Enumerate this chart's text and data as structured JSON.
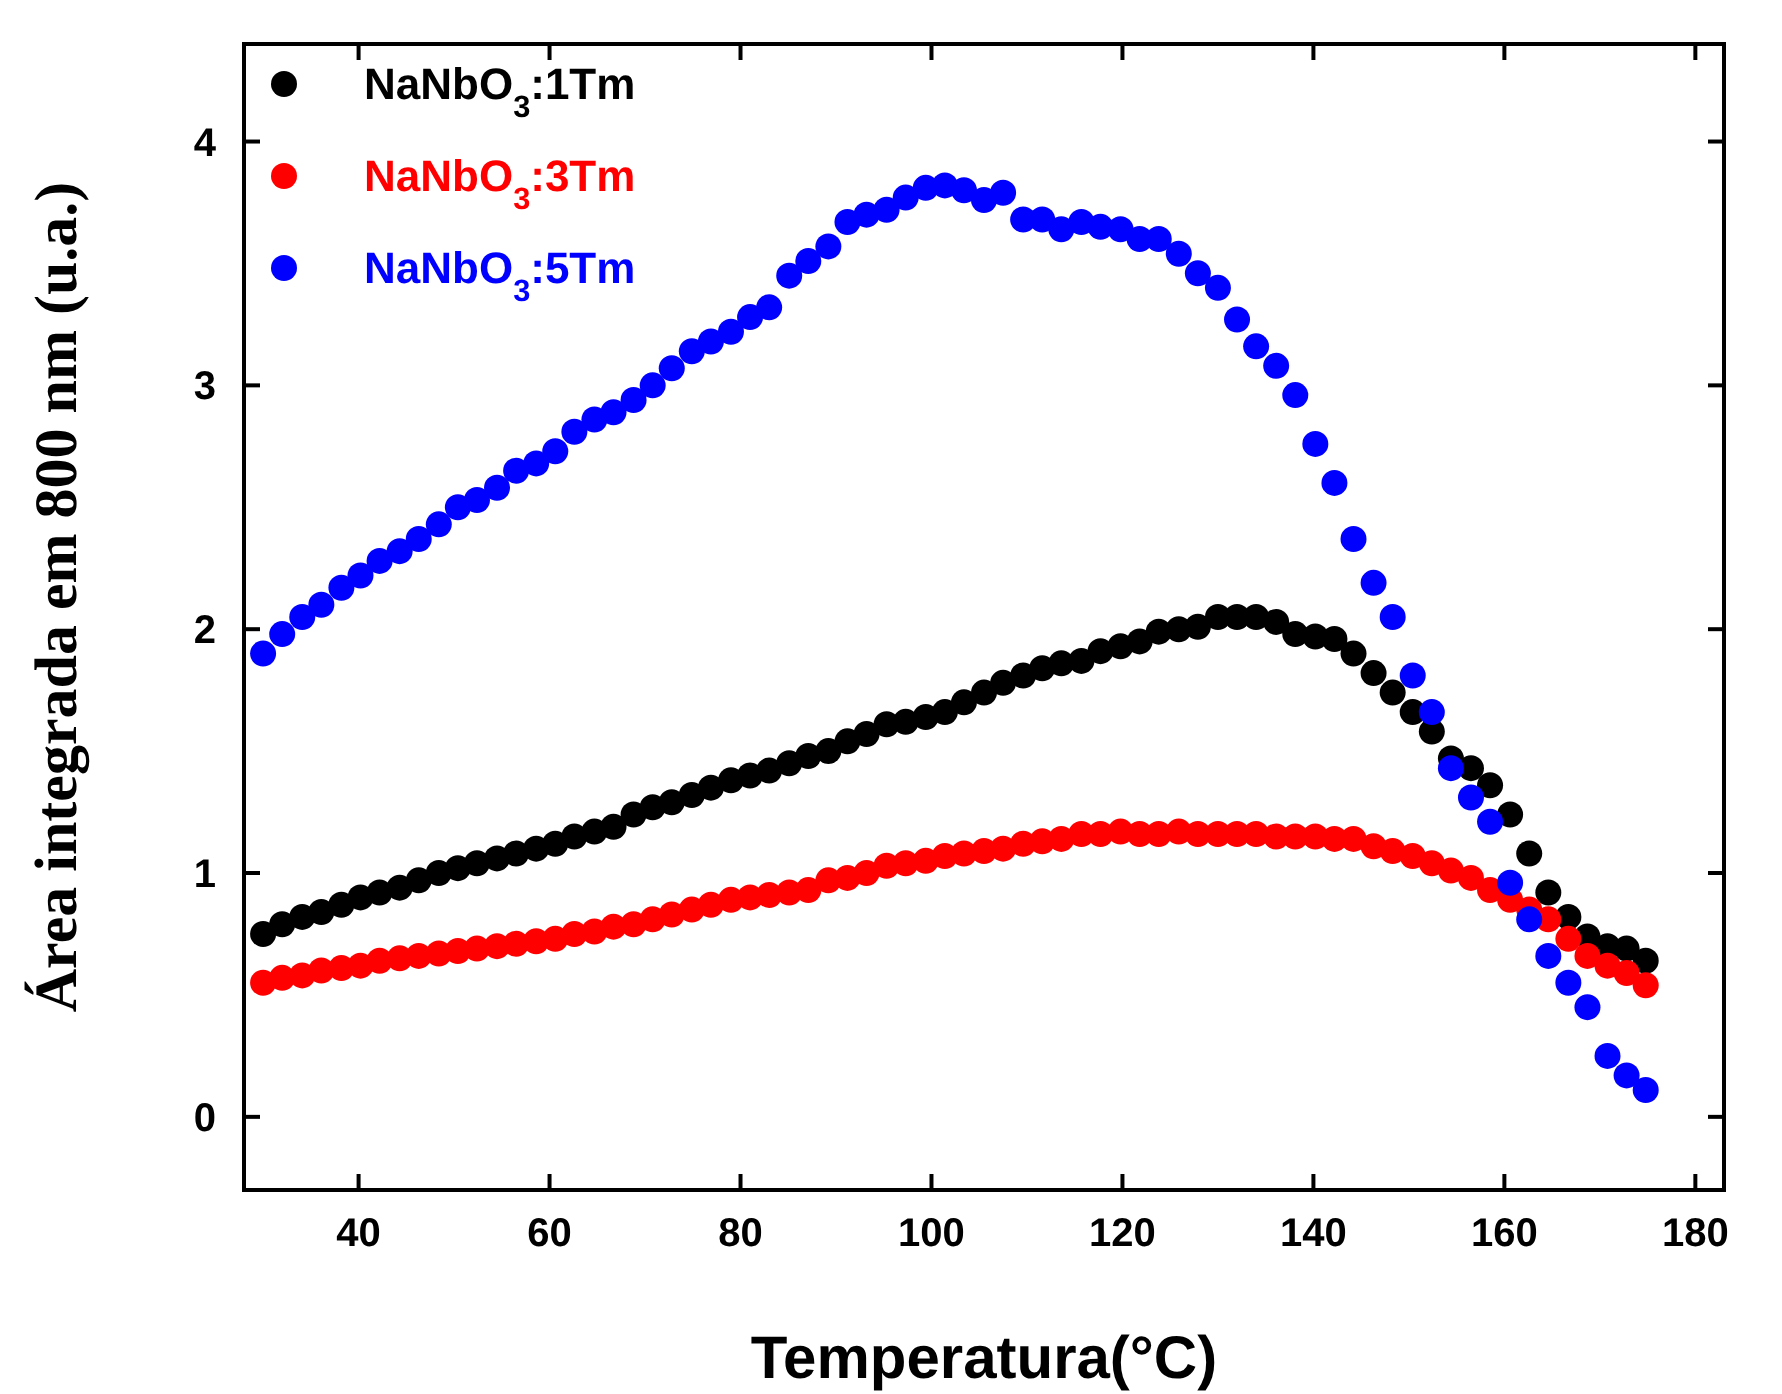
{
  "chart_data": {
    "type": "scatter",
    "xlabel": "Temperatura(°C)",
    "ylabel": "Área integrada em 800 nm (u.a.)",
    "x": [
      30,
      32.0,
      34.1,
      36.1,
      38.2,
      40.2,
      42.2,
      44.3,
      46.3,
      48.4,
      50.4,
      52.4,
      54.5,
      56.5,
      58.6,
      60.6,
      62.6,
      64.7,
      66.7,
      68.8,
      70.8,
      72.8,
      74.9,
      76.9,
      79.0,
      81.0,
      83.0,
      85.1,
      87.1,
      89.2,
      91.2,
      93.2,
      95.3,
      97.3,
      99.4,
      101.4,
      103.4,
      105.5,
      107.5,
      109.6,
      111.6,
      113.6,
      115.7,
      117.7,
      119.8,
      121.8,
      123.8,
      125.9,
      127.9,
      130.0,
      132.0,
      134.0,
      136.1,
      138.1,
      140.2,
      142.2,
      144.2,
      146.3,
      148.3,
      150.4,
      152.4,
      154.4,
      156.5,
      158.5,
      160.6,
      162.6,
      164.6,
      166.7,
      168.7,
      170.8,
      172.8,
      174.8
    ],
    "series": [
      {
        "name": "NaNbO$_{3}$:1Tm",
        "color": "#000000",
        "values": [
          0.75,
          0.79,
          0.82,
          0.84,
          0.87,
          0.9,
          0.92,
          0.94,
          0.97,
          1.0,
          1.02,
          1.04,
          1.06,
          1.08,
          1.1,
          1.12,
          1.15,
          1.17,
          1.19,
          1.24,
          1.27,
          1.29,
          1.32,
          1.35,
          1.38,
          1.4,
          1.42,
          1.45,
          1.48,
          1.5,
          1.54,
          1.57,
          1.61,
          1.62,
          1.64,
          1.66,
          1.7,
          1.74,
          1.78,
          1.81,
          1.84,
          1.86,
          1.87,
          1.91,
          1.93,
          1.95,
          1.99,
          2.0,
          2.01,
          2.05,
          2.05,
          2.05,
          2.03,
          1.98,
          1.97,
          1.96,
          1.9,
          1.82,
          1.74,
          1.66,
          1.58,
          1.47,
          1.43,
          1.36,
          1.24,
          1.08,
          0.92,
          0.82,
          0.74,
          0.7,
          0.69,
          0.64
        ]
      },
      {
        "name": "NaNbO$_{3}$:3Tm",
        "color": "#ff0000",
        "values": [
          0.55,
          0.57,
          0.58,
          0.6,
          0.61,
          0.62,
          0.64,
          0.65,
          0.66,
          0.67,
          0.68,
          0.69,
          0.7,
          0.71,
          0.72,
          0.73,
          0.75,
          0.76,
          0.78,
          0.79,
          0.81,
          0.83,
          0.85,
          0.87,
          0.89,
          0.9,
          0.91,
          0.92,
          0.93,
          0.97,
          0.98,
          1.0,
          1.03,
          1.04,
          1.05,
          1.07,
          1.08,
          1.09,
          1.1,
          1.12,
          1.13,
          1.14,
          1.16,
          1.16,
          1.17,
          1.16,
          1.16,
          1.17,
          1.16,
          1.16,
          1.16,
          1.16,
          1.15,
          1.15,
          1.15,
          1.14,
          1.14,
          1.11,
          1.09,
          1.07,
          1.04,
          1.01,
          0.98,
          0.93,
          0.89,
          0.85,
          0.81,
          0.73,
          0.66,
          0.62,
          0.59,
          0.54
        ]
      },
      {
        "name": "NaNbO$_{3}$:5Tm",
        "color": "#0000ff",
        "values": [
          1.9,
          1.98,
          2.05,
          2.1,
          2.17,
          2.22,
          2.28,
          2.32,
          2.37,
          2.43,
          2.5,
          2.53,
          2.58,
          2.65,
          2.68,
          2.73,
          2.81,
          2.86,
          2.89,
          2.94,
          3.0,
          3.07,
          3.14,
          3.18,
          3.22,
          3.28,
          3.32,
          3.45,
          3.51,
          3.57,
          3.67,
          3.7,
          3.72,
          3.77,
          3.81,
          3.82,
          3.8,
          3.76,
          3.79,
          3.68,
          3.68,
          3.64,
          3.67,
          3.65,
          3.64,
          3.6,
          3.6,
          3.54,
          3.46,
          3.4,
          3.27,
          3.16,
          3.08,
          2.96,
          2.76,
          2.6,
          2.37,
          2.19,
          2.05,
          1.81,
          1.66,
          1.43,
          1.31,
          1.21,
          0.96,
          0.81,
          0.66,
          0.55,
          0.45,
          0.25,
          0.17,
          0.11
        ]
      }
    ],
    "xlim": [
      28,
      183
    ],
    "xticks": [
      40,
      60,
      80,
      100,
      120,
      140,
      160,
      180
    ],
    "ylim": [
      -0.3,
      4.4
    ],
    "yticks": [
      0,
      1,
      2,
      3,
      4
    ],
    "legend": "top left",
    "marker": "circle",
    "grid": false
  }
}
